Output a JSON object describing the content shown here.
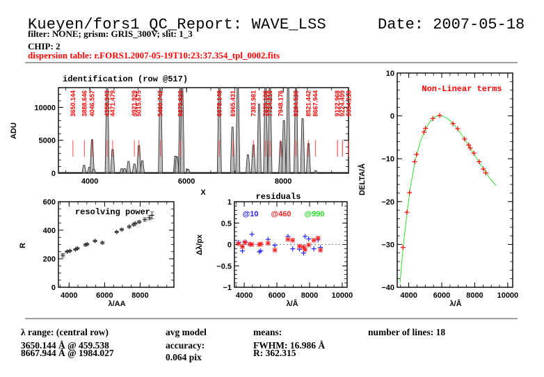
{
  "header": {
    "title": "Kueyen/fors1 QC_Report: WAVE_LSS",
    "date": "Date: 2007-05-18",
    "subtitle": "filter: NONE; grism: GRIS_300V; slit: 1_3",
    "chip": "CHIP: 2",
    "dispersion_table": "dispersion table: r.FORS1.2007-05-19T10:23:37.354_tpl_0002.fits"
  },
  "footer": {
    "range_title": "λ range: (central row)",
    "range_line1": "3650.144 Å @ 459.538",
    "range_line2": "8667.944 Å @ 1984.027",
    "acc_title": "avg model",
    "acc_label": "accuracy:",
    "acc_value": "0.064 pix",
    "means_title": "means:",
    "means_fwhm": "FWHM: 16.986 Å",
    "means_r": "R: 362.315",
    "nlines": "number of lines: 18"
  },
  "chart_data": [
    {
      "id": "identification",
      "type": "line",
      "title": "identification (row @517)",
      "xlabel": "X",
      "ylabel": "ADU",
      "xlim": [
        3350,
        9350
      ],
      "ylim": [
        0,
        13000
      ],
      "xticks": [
        4000,
        6000,
        8000
      ],
      "yticks": [
        0,
        5000,
        10000
      ],
      "line_labels": [
        "3650.144",
        "3888.646",
        "4046.557",
        "4358.343",
        "4471.479",
        "4921.929",
        "5015.675",
        "5460.742",
        "5875.620",
        "6678.149",
        "6965.431",
        "7383.981",
        "7635.106",
        "7724.210",
        "7948.176",
        "8264.520",
        "8521.442",
        "8667.944",
        "9122.968",
        "9224.499",
        "9354.218"
      ],
      "line_positions": [
        3650,
        3888,
        4046,
        4358,
        4471,
        4921,
        5015,
        5460,
        5875,
        6678,
        6965,
        7383,
        7635,
        7724,
        7948,
        8264,
        8521,
        8667,
        9122,
        9224,
        9354
      ],
      "spectrum_peaks": [
        [
          3880,
          1200
        ],
        [
          3990,
          900
        ],
        [
          4046,
          5100
        ],
        [
          4080,
          600
        ],
        [
          4358,
          13000
        ],
        [
          4471,
          3600
        ],
        [
          4660,
          700
        ],
        [
          4720,
          700
        ],
        [
          4800,
          1800
        ],
        [
          4921,
          1400
        ],
        [
          5015,
          4200
        ],
        [
          5085,
          1900
        ],
        [
          5460,
          13000
        ],
        [
          5770,
          2600
        ],
        [
          5800,
          2500
        ],
        [
          5875,
          13000
        ],
        [
          5910,
          13000
        ],
        [
          6030,
          600
        ],
        [
          6678,
          13000
        ],
        [
          6950,
          7000
        ],
        [
          7060,
          13000
        ],
        [
          7270,
          2800
        ],
        [
          7383,
          4300
        ],
        [
          7500,
          10500
        ],
        [
          7635,
          13000
        ],
        [
          7724,
          13000
        ],
        [
          7948,
          4800
        ],
        [
          8014,
          8000
        ],
        [
          8100,
          13000
        ],
        [
          8264,
          13000
        ],
        [
          8400,
          8300
        ],
        [
          8521,
          4500
        ],
        [
          8670,
          400
        ]
      ]
    },
    {
      "id": "resolving_power",
      "type": "scatter",
      "title": "resolving power",
      "xlabel": "λ/AA",
      "ylabel": "R",
      "xlim": [
        3400,
        9900
      ],
      "ylim": [
        0,
        600
      ],
      "xticks": [
        4000,
        6000,
        8000
      ],
      "yticks": [
        0,
        200,
        400,
        600
      ],
      "points": [
        [
          3650,
          225
        ],
        [
          3888,
          250
        ],
        [
          4046,
          255
        ],
        [
          4358,
          265
        ],
        [
          4471,
          273
        ],
        [
          4921,
          298
        ],
        [
          5015,
          302
        ],
        [
          5460,
          325
        ],
        [
          5875,
          312
        ],
        [
          6678,
          388
        ],
        [
          6965,
          405
        ],
        [
          7383,
          425
        ],
        [
          7635,
          440
        ],
        [
          7724,
          447
        ],
        [
          7948,
          458
        ],
        [
          8264,
          475
        ],
        [
          8521,
          488
        ],
        [
          8667,
          505
        ]
      ],
      "errors": [
        12,
        6,
        6,
        6,
        6,
        8,
        6,
        6,
        8,
        6,
        6,
        8,
        8,
        8,
        8,
        12,
        15,
        25
      ]
    },
    {
      "id": "residuals",
      "type": "scatter",
      "title": "residuals",
      "xlabel": "λ/Å",
      "ylabel": "Δλ/px",
      "xlim": [
        3400,
        10300
      ],
      "ylim": [
        -1,
        1
      ],
      "xticks": [
        4000,
        6000,
        8000,
        10000
      ],
      "yticks": [
        -1,
        -0.5,
        0,
        0.5,
        1
      ],
      "legend": [
        {
          "label": "@10",
          "color": "#2020ff"
        },
        {
          "label": "@460",
          "color": "#ff2020"
        },
        {
          "label": "@990",
          "color": "#20e020"
        }
      ],
      "series": [
        {
          "name": "@10",
          "color": "#2020ff",
          "points": [
            [
              3650,
              0.05
            ],
            [
              3888,
              -0.15
            ],
            [
              4046,
              0.06
            ],
            [
              4358,
              0.0
            ],
            [
              4471,
              0.24
            ],
            [
              4921,
              -0.17
            ],
            [
              5015,
              -0.15
            ],
            [
              5460,
              0.12
            ],
            [
              5875,
              -0.02
            ],
            [
              6678,
              0.19
            ],
            [
              6965,
              -0.1
            ],
            [
              7383,
              -0.11
            ],
            [
              7635,
              -0.2
            ],
            [
              7724,
              0.19
            ],
            [
              7948,
              0.13
            ],
            [
              8264,
              -0.1
            ],
            [
              8521,
              0.11
            ],
            [
              8667,
              -0.07
            ]
          ]
        },
        {
          "name": "@460",
          "color": "#ff2020",
          "points": [
            [
              3650,
              0.02
            ],
            [
              3888,
              -0.05
            ],
            [
              4046,
              0.05
            ],
            [
              4358,
              0.01
            ],
            [
              4471,
              0.0
            ],
            [
              4921,
              0.0
            ],
            [
              5015,
              0.01
            ],
            [
              5460,
              0.03
            ],
            [
              5875,
              -0.13
            ],
            [
              6678,
              0.12
            ],
            [
              6965,
              0.1
            ],
            [
              7383,
              -0.04
            ],
            [
              7635,
              -0.06
            ],
            [
              7724,
              -0.12
            ],
            [
              7948,
              -0.01
            ],
            [
              8264,
              0.1
            ],
            [
              8521,
              0.15
            ],
            [
              8667,
              -0.13
            ]
          ]
        }
      ]
    },
    {
      "id": "nonlinear",
      "type": "line",
      "title": "Non-Linear terms",
      "xlabel": "λ/Å",
      "ylabel": "DELTA/Å",
      "xlim": [
        3300,
        10300
      ],
      "ylim": [
        -40,
        10
      ],
      "xticks": [
        4000,
        6000,
        8000,
        10000
      ],
      "yticks": [
        -40,
        -30,
        -20,
        -10,
        0,
        10
      ],
      "points": [
        [
          3650,
          -30.7
        ],
        [
          3888,
          -22.5
        ],
        [
          4046,
          -17.9
        ],
        [
          4358,
          -10.7
        ],
        [
          4471,
          -9.0
        ],
        [
          4921,
          -3.8
        ],
        [
          5015,
          -2.9
        ],
        [
          5460,
          -0.6
        ],
        [
          5875,
          0.1
        ],
        [
          6678,
          -1.8
        ],
        [
          6965,
          -3.0
        ],
        [
          7383,
          -5.4
        ],
        [
          7635,
          -6.8
        ],
        [
          7724,
          -7.5
        ],
        [
          7948,
          -8.7
        ],
        [
          8264,
          -10.7
        ],
        [
          8521,
          -12.4
        ],
        [
          8667,
          -13.3
        ]
      ],
      "fit": [
        [
          3470,
          -39
        ],
        [
          3650,
          -31
        ],
        [
          3900,
          -22.5
        ],
        [
          4100,
          -16.5
        ],
        [
          4400,
          -10.2
        ],
        [
          4700,
          -6.0
        ],
        [
          5000,
          -3.2
        ],
        [
          5300,
          -1.3
        ],
        [
          5600,
          -0.2
        ],
        [
          5900,
          0.1
        ],
        [
          6200,
          -0.3
        ],
        [
          6500,
          -1.1
        ],
        [
          6800,
          -2.3
        ],
        [
          7100,
          -3.8
        ],
        [
          7400,
          -5.5
        ],
        [
          7700,
          -7.3
        ],
        [
          8000,
          -9.2
        ],
        [
          8300,
          -11.0
        ],
        [
          8600,
          -12.8
        ],
        [
          8900,
          -14.5
        ],
        [
          9200,
          -15.9
        ],
        [
          9300,
          -16.3
        ]
      ]
    }
  ]
}
